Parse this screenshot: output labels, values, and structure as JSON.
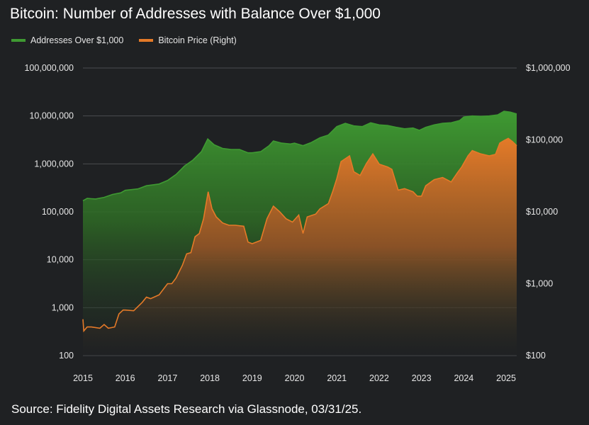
{
  "chart_data": {
    "type": "area",
    "title": "Bitcoin: Number of Addresses with Balance Over $1,000",
    "source": "Source: Fidelity Digital Assets Research via Glassnode, 03/31/25.",
    "x_axis": {
      "ticks": [
        "2015",
        "2016",
        "2017",
        "2018",
        "2019",
        "2020",
        "2021",
        "2022",
        "2023",
        "2024",
        "2025"
      ],
      "range": [
        2015.0,
        2025.25
      ]
    },
    "y_left": {
      "scale": "log",
      "range": [
        100,
        100000000
      ],
      "ticks": [
        {
          "value": 100000000,
          "label": "100,000,000"
        },
        {
          "value": 10000000,
          "label": "10,000,000"
        },
        {
          "value": 1000000,
          "label": "1,000,000"
        },
        {
          "value": 100000,
          "label": "100,000"
        },
        {
          "value": 10000,
          "label": "10,000"
        },
        {
          "value": 1000,
          "label": "1,000"
        },
        {
          "value": 100,
          "label": "100"
        }
      ]
    },
    "y_right": {
      "scale": "log",
      "range": [
        100,
        1000000
      ],
      "ticks": [
        {
          "value": 1000000,
          "label": "$1,000,000"
        },
        {
          "value": 100000,
          "label": "$100,000"
        },
        {
          "value": 10000,
          "label": "$10,000"
        },
        {
          "value": 1000,
          "label": "$1,000"
        },
        {
          "value": 100,
          "label": "$100"
        }
      ]
    },
    "grid": true,
    "legend_position": "top-left",
    "series": [
      {
        "name": "Addresses Over $1,000",
        "axis": "left",
        "color": "#3f9a32",
        "points": [
          [
            2015.0,
            170000
          ],
          [
            2015.1,
            190000
          ],
          [
            2015.3,
            185000
          ],
          [
            2015.5,
            200000
          ],
          [
            2015.7,
            230000
          ],
          [
            2015.9,
            250000
          ],
          [
            2016.0,
            280000
          ],
          [
            2016.3,
            300000
          ],
          [
            2016.5,
            350000
          ],
          [
            2016.8,
            380000
          ],
          [
            2017.0,
            450000
          ],
          [
            2017.2,
            600000
          ],
          [
            2017.4,
            900000
          ],
          [
            2017.6,
            1200000
          ],
          [
            2017.8,
            1800000
          ],
          [
            2017.95,
            3300000
          ],
          [
            2018.1,
            2500000
          ],
          [
            2018.3,
            2100000
          ],
          [
            2018.5,
            2000000
          ],
          [
            2018.7,
            2000000
          ],
          [
            2018.9,
            1700000
          ],
          [
            2019.0,
            1700000
          ],
          [
            2019.2,
            1800000
          ],
          [
            2019.4,
            2400000
          ],
          [
            2019.5,
            3000000
          ],
          [
            2019.7,
            2700000
          ],
          [
            2019.9,
            2600000
          ],
          [
            2020.0,
            2700000
          ],
          [
            2020.2,
            2400000
          ],
          [
            2020.4,
            2800000
          ],
          [
            2020.6,
            3500000
          ],
          [
            2020.8,
            4000000
          ],
          [
            2021.0,
            6000000
          ],
          [
            2021.2,
            7000000
          ],
          [
            2021.4,
            6200000
          ],
          [
            2021.6,
            6000000
          ],
          [
            2021.8,
            7200000
          ],
          [
            2022.0,
            6500000
          ],
          [
            2022.2,
            6300000
          ],
          [
            2022.4,
            5800000
          ],
          [
            2022.6,
            5400000
          ],
          [
            2022.8,
            5600000
          ],
          [
            2022.95,
            5000000
          ],
          [
            2023.1,
            5800000
          ],
          [
            2023.3,
            6500000
          ],
          [
            2023.5,
            7000000
          ],
          [
            2023.7,
            7200000
          ],
          [
            2023.9,
            8000000
          ],
          [
            2024.0,
            9500000
          ],
          [
            2024.2,
            10000000
          ],
          [
            2024.4,
            9800000
          ],
          [
            2024.6,
            10000000
          ],
          [
            2024.8,
            10500000
          ],
          [
            2024.95,
            12500000
          ],
          [
            2025.1,
            12000000
          ],
          [
            2025.25,
            11000000
          ]
        ]
      },
      {
        "name": "Bitcoin Price (Right)",
        "axis": "right",
        "color": "#e47a28",
        "points": [
          [
            2015.0,
            320
          ],
          [
            2015.02,
            220
          ],
          [
            2015.1,
            250
          ],
          [
            2015.2,
            250
          ],
          [
            2015.4,
            240
          ],
          [
            2015.5,
            270
          ],
          [
            2015.6,
            240
          ],
          [
            2015.75,
            250
          ],
          [
            2015.85,
            380
          ],
          [
            2015.95,
            430
          ],
          [
            2016.0,
            430
          ],
          [
            2016.2,
            420
          ],
          [
            2016.4,
            550
          ],
          [
            2016.5,
            650
          ],
          [
            2016.6,
            620
          ],
          [
            2016.8,
            700
          ],
          [
            2017.0,
            1000
          ],
          [
            2017.1,
            1000
          ],
          [
            2017.2,
            1200
          ],
          [
            2017.35,
            1800
          ],
          [
            2017.45,
            2600
          ],
          [
            2017.55,
            2700
          ],
          [
            2017.65,
            4500
          ],
          [
            2017.75,
            5000
          ],
          [
            2017.85,
            8000
          ],
          [
            2017.96,
            19000
          ],
          [
            2018.05,
            11000
          ],
          [
            2018.15,
            8500
          ],
          [
            2018.3,
            7000
          ],
          [
            2018.45,
            6500
          ],
          [
            2018.6,
            6500
          ],
          [
            2018.8,
            6300
          ],
          [
            2018.9,
            3800
          ],
          [
            2019.0,
            3600
          ],
          [
            2019.2,
            4000
          ],
          [
            2019.35,
            8000
          ],
          [
            2019.5,
            12000
          ],
          [
            2019.65,
            10000
          ],
          [
            2019.8,
            8000
          ],
          [
            2019.95,
            7200
          ],
          [
            2020.1,
            9000
          ],
          [
            2020.2,
            5000
          ],
          [
            2020.3,
            8500
          ],
          [
            2020.5,
            9300
          ],
          [
            2020.6,
            11000
          ],
          [
            2020.8,
            13000
          ],
          [
            2020.9,
            19000
          ],
          [
            2021.0,
            29000
          ],
          [
            2021.1,
            50000
          ],
          [
            2021.3,
            60000
          ],
          [
            2021.4,
            36000
          ],
          [
            2021.55,
            32000
          ],
          [
            2021.7,
            47000
          ],
          [
            2021.85,
            64000
          ],
          [
            2022.0,
            46000
          ],
          [
            2022.2,
            42000
          ],
          [
            2022.3,
            39000
          ],
          [
            2022.45,
            20000
          ],
          [
            2022.6,
            21000
          ],
          [
            2022.8,
            19000
          ],
          [
            2022.9,
            16500
          ],
          [
            2023.0,
            16500
          ],
          [
            2023.1,
            23000
          ],
          [
            2023.3,
            28000
          ],
          [
            2023.5,
            30000
          ],
          [
            2023.7,
            26000
          ],
          [
            2023.85,
            35000
          ],
          [
            2023.95,
            42000
          ],
          [
            2024.1,
            60000
          ],
          [
            2024.2,
            71000
          ],
          [
            2024.4,
            64000
          ],
          [
            2024.6,
            60000
          ],
          [
            2024.75,
            63000
          ],
          [
            2024.85,
            90000
          ],
          [
            2024.95,
            98000
          ],
          [
            2025.05,
            105000
          ],
          [
            2025.15,
            95000
          ],
          [
            2025.25,
            83000
          ]
        ]
      }
    ]
  }
}
